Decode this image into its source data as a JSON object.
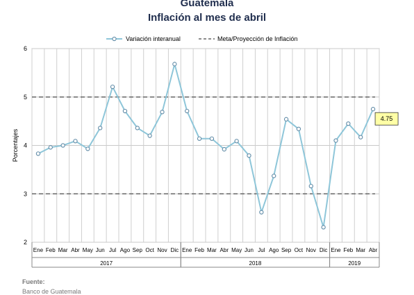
{
  "chart_data": {
    "type": "line",
    "title": "Guatemala",
    "subtitle": "Inflación al mes de abril",
    "ylabel": "Porcentajes",
    "ylim": [
      2,
      6
    ],
    "yticks": [
      "2",
      "3",
      "4",
      "5",
      "6"
    ],
    "grid": true,
    "legend_position": "top",
    "categories": [
      "Ene",
      "Feb",
      "Mar",
      "Abr",
      "May",
      "Jun",
      "Jul",
      "Ago",
      "Sep",
      "Oct",
      "Nov",
      "Dic",
      "Ene",
      "Feb",
      "Mar",
      "Abr",
      "May",
      "Jun",
      "Jul",
      "Ago",
      "Sep",
      "Oct",
      "Nov",
      "Dic",
      "Ene",
      "Feb",
      "Mar",
      "Abr"
    ],
    "years": [
      {
        "label": "2017",
        "start": 0,
        "end": 11
      },
      {
        "label": "2018",
        "start": 12,
        "end": 23
      },
      {
        "label": "2019",
        "start": 24,
        "end": 27
      }
    ],
    "series": [
      {
        "name": "Variación interanual",
        "color": "#8ec6d9",
        "values": [
          3.83,
          3.96,
          4.0,
          4.09,
          3.93,
          4.36,
          5.21,
          4.71,
          4.36,
          4.2,
          4.69,
          5.68,
          4.71,
          4.14,
          4.14,
          3.92,
          4.09,
          3.79,
          2.62,
          3.37,
          4.54,
          4.34,
          3.16,
          2.31,
          4.1,
          4.45,
          4.17,
          4.75
        ]
      }
    ],
    "reference_lines": {
      "name": "Meta/Proyección de Inflación",
      "values": [
        3,
        5
      ],
      "color": "#666666"
    },
    "annotation": {
      "index": 27,
      "text": "4.75"
    }
  },
  "footer": {
    "source_label": "Fuente:",
    "source_text": "Banco de Guatemala"
  }
}
